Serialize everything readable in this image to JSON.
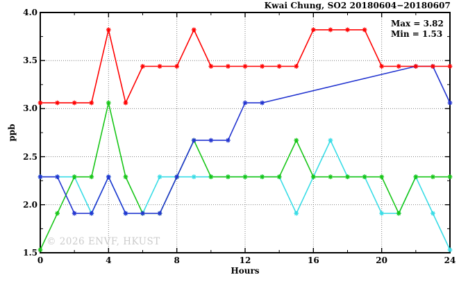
{
  "title": "Kwai Chung, SO2 20180604−20180607",
  "annotation": {
    "max_label": "Max = 3.82",
    "min_label": "Min = 1.53"
  },
  "watermark": "© 2026 ENVF, HKUST",
  "chart_data": {
    "type": "line",
    "title": "Kwai Chung, SO2 20180604−20180607",
    "xlabel": "Hours",
    "ylabel": "ppb",
    "xlim": [
      0,
      24
    ],
    "ylim": [
      1.5,
      4.0
    ],
    "grid": true,
    "legend_position": "none",
    "stats": {
      "max": 3.82,
      "min": 1.53
    },
    "x": [
      0,
      1,
      2,
      3,
      4,
      5,
      6,
      7,
      8,
      9,
      10,
      11,
      12,
      13,
      14,
      15,
      16,
      17,
      18,
      19,
      20,
      21,
      22,
      23,
      24
    ],
    "x_major_ticks": [
      0,
      4,
      8,
      12,
      16,
      20,
      24
    ],
    "x_tick_labels": [
      "0",
      "4",
      "8",
      "12",
      "16",
      "20",
      "24"
    ],
    "x_minor_ticks": [
      2,
      6,
      10,
      14,
      18,
      22
    ],
    "y_major_ticks": [
      1.5,
      2.0,
      2.5,
      3.0,
      3.5,
      4.0
    ],
    "y_tick_labels": [
      "1.5",
      "2.0",
      "2.5",
      "3.0",
      "3.5",
      "4.0"
    ],
    "y_minor_ticks": [
      1.75,
      2.25,
      2.75,
      3.25,
      3.75
    ],
    "x_gridlines": [
      4,
      8,
      12,
      16,
      20
    ],
    "y_gridlines": [
      2.0,
      2.5,
      3.0,
      3.5
    ],
    "marker": "asterisk",
    "series": [
      {
        "name": "cyan-series",
        "color": "#38dce6",
        "values": [
          2.29,
          2.29,
          2.29,
          1.91,
          2.29,
          1.91,
          1.91,
          2.29,
          2.29,
          2.29,
          2.29,
          2.29,
          2.29,
          2.29,
          2.29,
          1.91,
          2.29,
          2.67,
          2.29,
          2.29,
          1.91,
          1.91,
          2.29,
          1.91,
          1.53
        ]
      },
      {
        "name": "green-series",
        "color": "#17c617",
        "values": [
          1.53,
          1.91,
          2.29,
          2.29,
          3.06,
          2.29,
          1.91,
          1.91,
          2.29,
          2.67,
          2.29,
          2.29,
          2.29,
          2.29,
          2.29,
          2.67,
          2.29,
          2.29,
          2.29,
          2.29,
          2.29,
          1.91,
          2.29,
          2.29,
          2.29
        ]
      },
      {
        "name": "blue-series",
        "color": "#2234d0",
        "values": [
          2.29,
          2.29,
          1.91,
          1.91,
          2.29,
          1.91,
          1.91,
          1.91,
          2.29,
          2.67,
          2.67,
          2.67,
          3.06,
          3.06,
          null,
          null,
          null,
          null,
          null,
          null,
          null,
          null,
          3.44,
          3.44,
          3.06
        ]
      },
      {
        "name": "red-series",
        "color": "#ff0000",
        "values": [
          3.06,
          3.06,
          3.06,
          3.06,
          3.82,
          3.06,
          3.44,
          3.44,
          3.44,
          3.82,
          3.44,
          3.44,
          3.44,
          3.44,
          3.44,
          3.44,
          3.82,
          3.82,
          3.82,
          3.82,
          3.44,
          3.44,
          3.44,
          3.44,
          3.44
        ]
      }
    ]
  }
}
